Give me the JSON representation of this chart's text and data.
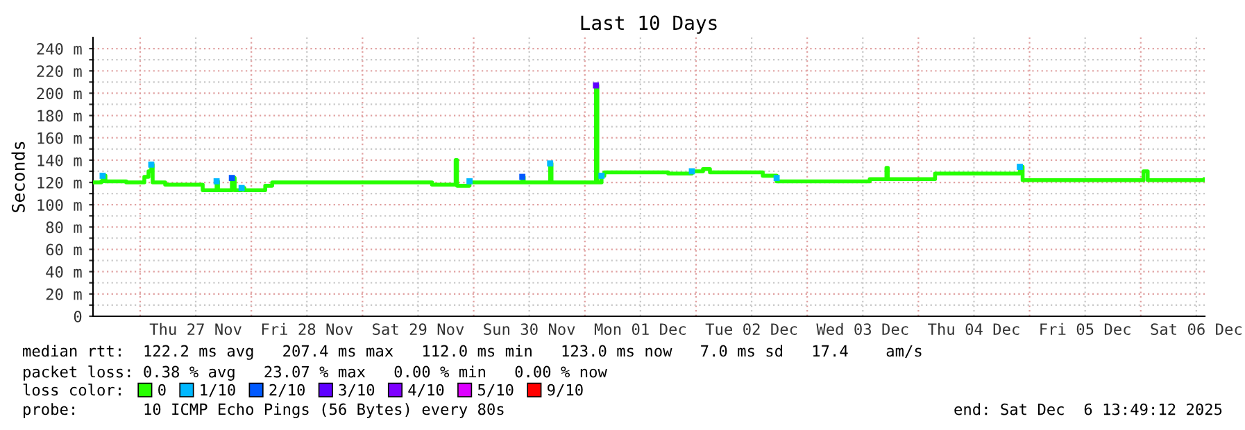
{
  "chart_data": {
    "type": "step",
    "title": "Last 10 Days",
    "ylabel": "Seconds",
    "xlim": [
      "2025-11-26T13:49",
      "2025-12-06T13:49"
    ],
    "xticks": [
      {
        "value": "2025-11-27T00:00",
        "label": null
      },
      {
        "value": "2025-11-27T12:00",
        "label": "Thu 27 Nov"
      },
      {
        "value": "2025-11-28T00:00",
        "label": null
      },
      {
        "value": "2025-11-28T12:00",
        "label": "Fri 28 Nov"
      },
      {
        "value": "2025-11-29T00:00",
        "label": null
      },
      {
        "value": "2025-11-29T12:00",
        "label": "Sat 29 Nov"
      },
      {
        "value": "2025-11-30T00:00",
        "label": null
      },
      {
        "value": "2025-11-30T12:00",
        "label": "Sun 30 Nov"
      },
      {
        "value": "2025-12-01T00:00",
        "label": null
      },
      {
        "value": "2025-12-01T12:00",
        "label": "Mon 01 Dec"
      },
      {
        "value": "2025-12-02T00:00",
        "label": null
      },
      {
        "value": "2025-12-02T12:00",
        "label": "Tue 02 Dec"
      },
      {
        "value": "2025-12-03T00:00",
        "label": null
      },
      {
        "value": "2025-12-03T12:00",
        "label": "Wed 03 Dec"
      },
      {
        "value": "2025-12-04T00:00",
        "label": null
      },
      {
        "value": "2025-12-04T12:00",
        "label": "Thu 04 Dec"
      },
      {
        "value": "2025-12-05T00:00",
        "label": null
      },
      {
        "value": "2025-12-05T12:00",
        "label": "Fri 05 Dec"
      },
      {
        "value": "2025-12-06T00:00",
        "label": null
      },
      {
        "value": "2025-12-06T12:00",
        "label": "Sat 06 Dec"
      }
    ],
    "ylim": [
      0,
      250
    ],
    "yticks": [
      0,
      {
        "value": 10,
        "label": null
      },
      {
        "value": 20,
        "label": "20 m"
      },
      {
        "value": 30,
        "label": null
      },
      {
        "value": 40,
        "label": "40 m"
      },
      {
        "value": 50,
        "label": null
      },
      {
        "value": 60,
        "label": "60 m"
      },
      {
        "value": 70,
        "label": null
      },
      {
        "value": 80,
        "label": "80 m"
      },
      {
        "value": 90,
        "label": null
      },
      {
        "value": 100,
        "label": "100 m"
      },
      {
        "value": 110,
        "label": null
      },
      {
        "value": 120,
        "label": "120 m"
      },
      {
        "value": 130,
        "label": null
      },
      {
        "value": 140,
        "label": "140 m"
      },
      {
        "value": 150,
        "label": null
      },
      {
        "value": 160,
        "label": "160 m"
      },
      {
        "value": 170,
        "label": null
      },
      {
        "value": 180,
        "label": "180 m"
      },
      {
        "value": 190,
        "label": null
      },
      {
        "value": 200,
        "label": "200 m"
      },
      {
        "value": 210,
        "label": null
      },
      {
        "value": 220,
        "label": "220 m"
      },
      {
        "value": 230,
        "label": null
      },
      {
        "value": 240,
        "label": "240 m"
      }
    ],
    "grid": true,
    "legend": "bottom",
    "legend_title": "loss color:",
    "series": [
      {
        "name": "0",
        "color": "#26ff00",
        "x": [
          "2025-11-26T13:49",
          "2025-11-26T15:36",
          "2025-11-26T15:54",
          "2025-11-26T16:30",
          "2025-11-26T21:00",
          "2025-11-27T00:54",
          "2025-11-27T01:48",
          "2025-11-27T02:24",
          "2025-11-27T02:42",
          "2025-11-27T05:24",
          "2025-11-27T13:30",
          "2025-11-27T16:30",
          "2025-11-27T16:48",
          "2025-11-27T19:48",
          "2025-11-27T20:24",
          "2025-11-27T21:54",
          "2025-11-27T22:30",
          "2025-11-28T03:00",
          "2025-11-28T04:30",
          "2025-11-29T15:00",
          "2025-11-29T20:06",
          "2025-11-29T20:24",
          "2025-11-29T23:06",
          "2025-11-30T10:30",
          "2025-11-30T10:48",
          "2025-11-30T16:30",
          "2025-11-30T16:48",
          "2025-12-01T02:24",
          "2025-12-01T02:42",
          "2025-12-01T03:36",
          "2025-12-01T04:12",
          "2025-12-01T18:00",
          "2025-12-01T23:06",
          "2025-12-02T01:30",
          "2025-12-02T03:00",
          "2025-12-02T14:24",
          "2025-12-02T17:24",
          "2025-12-03T13:30",
          "2025-12-03T17:06",
          "2025-12-03T17:24",
          "2025-12-04T03:36",
          "2025-12-04T21:54",
          "2025-12-04T22:30",
          "2025-12-06T00:36",
          "2025-12-06T01:30",
          "2025-12-06T13:49"
        ],
        "values": [
          120,
          121,
          126,
          121,
          120,
          125,
          130,
          136,
          120,
          118,
          113,
          121,
          113,
          124,
          113,
          115,
          113,
          117,
          120,
          118,
          140,
          117,
          120,
          125,
          120,
          137,
          120,
          207,
          120,
          126,
          129,
          128,
          130,
          132,
          129,
          126,
          121,
          123,
          133,
          123,
          128,
          134,
          122,
          130,
          122,
          123
        ]
      },
      {
        "name": "1/10",
        "color": "#00b8ff",
        "type": "scatter",
        "x": [
          "2025-11-26T15:54",
          "2025-11-27T02:24",
          "2025-11-27T16:30",
          "2025-11-27T21:54",
          "2025-11-29T23:06",
          "2025-11-30T16:30",
          "2025-12-01T03:36",
          "2025-12-01T23:06",
          "2025-12-02T17:24",
          "2025-12-04T21:54"
        ],
        "values": [
          126,
          136,
          121,
          115,
          121,
          137,
          126,
          130,
          124,
          134
        ]
      },
      {
        "name": "2/10",
        "color": "#0059ff",
        "type": "scatter",
        "x": [
          "2025-11-27T19:48",
          "2025-11-30T10:30"
        ],
        "values": [
          124,
          125
        ]
      },
      {
        "name": "3/10",
        "color": "#5e00ff",
        "type": "scatter",
        "x": [
          "2025-12-01T02:24"
        ],
        "values": [
          207
        ]
      },
      {
        "name": "4/10",
        "color": "#7e00ff",
        "type": "scatter"
      },
      {
        "name": "5/10",
        "color": "#dd00ff",
        "type": "scatter"
      },
      {
        "name": "9/10",
        "color": "#ff0000",
        "type": "scatter"
      }
    ],
    "annotations": [
      "median rtt:  122.2 ms avg   207.4 ms max   112.0 ms min   123.0 ms now   7.0 ms sd   17.4    am/s",
      "packet loss: 0.38 % avg   23.07 % max   0.00 % min   0.00 % now",
      "probe:       10 ICMP Echo Pings (56 Bytes) every 80s",
      "end: Sat Dec  6 13:49:12 2025"
    ]
  }
}
